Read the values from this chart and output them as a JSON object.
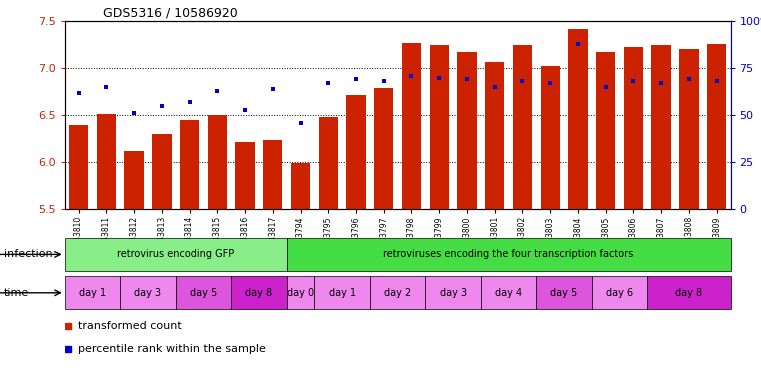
{
  "title": "GDS5316 / 10586920",
  "samples": [
    "GSM943810",
    "GSM943811",
    "GSM943812",
    "GSM943813",
    "GSM943814",
    "GSM943815",
    "GSM943816",
    "GSM943817",
    "GSM943794",
    "GSM943795",
    "GSM943796",
    "GSM943797",
    "GSM943798",
    "GSM943799",
    "GSM943800",
    "GSM943801",
    "GSM943802",
    "GSM943803",
    "GSM943804",
    "GSM943805",
    "GSM943806",
    "GSM943807",
    "GSM943808",
    "GSM943809"
  ],
  "red_values": [
    6.4,
    6.51,
    6.12,
    6.3,
    6.45,
    6.5,
    6.22,
    6.24,
    5.99,
    6.48,
    6.72,
    6.79,
    7.27,
    7.25,
    7.17,
    7.07,
    7.25,
    7.02,
    7.42,
    7.17,
    7.22,
    7.25,
    7.2,
    7.26
  ],
  "blue_values": [
    62,
    65,
    51,
    55,
    57,
    63,
    53,
    64,
    46,
    67,
    69,
    68,
    71,
    70,
    69,
    65,
    68,
    67,
    88,
    65,
    68,
    67,
    69,
    68
  ],
  "y_min": 5.5,
  "y_max": 7.5,
  "y_ticks": [
    5.5,
    6.0,
    6.5,
    7.0,
    7.5
  ],
  "y2_ticks": [
    0,
    25,
    50,
    75,
    100
  ],
  "bar_color": "#cc2200",
  "dot_color": "#0000cc",
  "infection_groups": [
    {
      "label": "retrovirus encoding GFP",
      "start": 0,
      "end": 8,
      "color": "#88ee88"
    },
    {
      "label": "retroviruses encoding the four transcription factors",
      "start": 8,
      "end": 24,
      "color": "#44dd44"
    }
  ],
  "time_groups": [
    {
      "label": "day 1",
      "start": 0,
      "end": 2,
      "color": "#ee88ee"
    },
    {
      "label": "day 3",
      "start": 2,
      "end": 4,
      "color": "#ee88ee"
    },
    {
      "label": "day 5",
      "start": 4,
      "end": 6,
      "color": "#dd55dd"
    },
    {
      "label": "day 8",
      "start": 6,
      "end": 8,
      "color": "#cc22cc"
    },
    {
      "label": "day 0",
      "start": 8,
      "end": 9,
      "color": "#ee88ee"
    },
    {
      "label": "day 1",
      "start": 9,
      "end": 11,
      "color": "#ee88ee"
    },
    {
      "label": "day 2",
      "start": 11,
      "end": 13,
      "color": "#ee88ee"
    },
    {
      "label": "day 3",
      "start": 13,
      "end": 15,
      "color": "#ee88ee"
    },
    {
      "label": "day 4",
      "start": 15,
      "end": 17,
      "color": "#ee88ee"
    },
    {
      "label": "day 5",
      "start": 17,
      "end": 19,
      "color": "#dd55dd"
    },
    {
      "label": "day 6",
      "start": 19,
      "end": 21,
      "color": "#ee88ee"
    },
    {
      "label": "day 8",
      "start": 21,
      "end": 24,
      "color": "#cc22cc"
    }
  ],
  "legend_items": [
    {
      "label": "transformed count",
      "color": "#cc2200"
    },
    {
      "label": "percentile rank within the sample",
      "color": "#0000cc"
    }
  ]
}
